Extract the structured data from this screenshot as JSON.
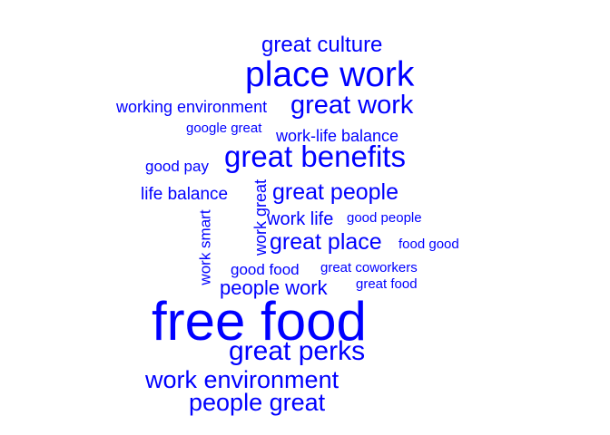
{
  "word_cloud": {
    "color": "#0000ff",
    "words": {
      "great_culture": "great culture",
      "place_work": "place work",
      "working_environment": "working environment",
      "great_work": "great work",
      "google_great": "google great",
      "work_life_balance": "work-life balance",
      "good_pay": "good pay",
      "great_benefits": "great benefits",
      "life_balance": "life balance",
      "great_people": "great people",
      "work_great": "work great",
      "work_smart": "work smart",
      "work_life": "work life",
      "good_people": "good people",
      "great_place": "great place",
      "food_good": "food good",
      "good_food": "good food",
      "great_coworkers": "great coworkers",
      "great_food": "great food",
      "people_work": "people work",
      "free_food": "free food",
      "great_perks": "great perks",
      "work_environment": "work environment",
      "people_great": "people great"
    }
  }
}
